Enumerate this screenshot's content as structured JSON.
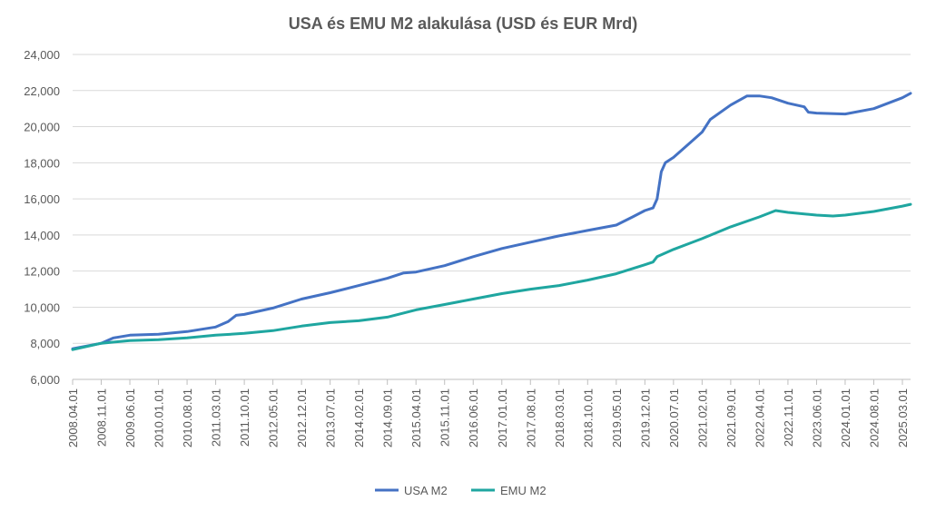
{
  "chart_data": {
    "type": "line",
    "title": "USA és EMU M2 alakulása (USD és EUR Mrd)",
    "xlabel": "",
    "ylabel": "",
    "ylim": [
      6000,
      24000
    ],
    "y_ticks": [
      "6,000",
      "8,000",
      "10,000",
      "12,000",
      "14,000",
      "16,000",
      "18,000",
      "20,000",
      "22,000",
      "24,000"
    ],
    "x_ticks": [
      "2008.04.01",
      "2008.11.01",
      "2009.06.01",
      "2010.01.01",
      "2010.08.01",
      "2011.03.01",
      "2011.10.01",
      "2012.05.01",
      "2012.12.01",
      "2013.07.01",
      "2014.02.01",
      "2014.09.01",
      "2015.04.01",
      "2015.11.01",
      "2016.06.01",
      "2017.01.01",
      "2017.08.01",
      "2018.03.01",
      "2018.10.01",
      "2019.05.01",
      "2019.12.01",
      "2020.07.01",
      "2021.02.01",
      "2021.09.01",
      "2022.04.01",
      "2022.11.01",
      "2023.06.01",
      "2024.01.01",
      "2024.08.01",
      "2025.03.01"
    ],
    "grid": true,
    "legend_position": "bottom",
    "series": [
      {
        "name": "USA M2",
        "color": "#4472C4",
        "points": [
          [
            "2008.04.01",
            7700
          ],
          [
            "2008.11.01",
            8000
          ],
          [
            "2009.02.01",
            8300
          ],
          [
            "2009.06.01",
            8450
          ],
          [
            "2010.01.01",
            8500
          ],
          [
            "2010.08.01",
            8650
          ],
          [
            "2011.03.01",
            8900
          ],
          [
            "2011.06.01",
            9200
          ],
          [
            "2011.08.01",
            9550
          ],
          [
            "2011.10.01",
            9600
          ],
          [
            "2012.05.01",
            9950
          ],
          [
            "2012.12.01",
            10450
          ],
          [
            "2013.07.01",
            10800
          ],
          [
            "2014.02.01",
            11200
          ],
          [
            "2014.09.01",
            11600
          ],
          [
            "2015.01.01",
            11900
          ],
          [
            "2015.04.01",
            11950
          ],
          [
            "2015.11.01",
            12300
          ],
          [
            "2016.06.01",
            12800
          ],
          [
            "2017.01.01",
            13250
          ],
          [
            "2017.08.01",
            13600
          ],
          [
            "2018.03.01",
            13950
          ],
          [
            "2018.10.01",
            14250
          ],
          [
            "2019.05.01",
            14550
          ],
          [
            "2019.09.01",
            15000
          ],
          [
            "2019.12.01",
            15350
          ],
          [
            "2020.02.01",
            15500
          ],
          [
            "2020.03.01",
            16000
          ],
          [
            "2020.04.01",
            17500
          ],
          [
            "2020.05.01",
            18000
          ],
          [
            "2020.07.01",
            18300
          ],
          [
            "2021.02.01",
            19700
          ],
          [
            "2021.04.01",
            20400
          ],
          [
            "2021.09.01",
            21200
          ],
          [
            "2022.01.01",
            21700
          ],
          [
            "2022.04.01",
            21700
          ],
          [
            "2022.07.01",
            21600
          ],
          [
            "2022.11.01",
            21300
          ],
          [
            "2023.03.01",
            21100
          ],
          [
            "2023.04.01",
            20800
          ],
          [
            "2023.06.01",
            20750
          ],
          [
            "2024.01.01",
            20700
          ],
          [
            "2024.08.01",
            21000
          ],
          [
            "2025.03.01",
            21600
          ],
          [
            "2025.05.01",
            21850
          ]
        ]
      },
      {
        "name": "EMU M2",
        "color": "#1FA6A0",
        "points": [
          [
            "2008.04.01",
            7650
          ],
          [
            "2008.11.01",
            8000
          ],
          [
            "2009.06.01",
            8150
          ],
          [
            "2010.01.01",
            8200
          ],
          [
            "2010.08.01",
            8300
          ],
          [
            "2011.03.01",
            8450
          ],
          [
            "2011.10.01",
            8550
          ],
          [
            "2012.05.01",
            8700
          ],
          [
            "2012.12.01",
            8950
          ],
          [
            "2013.07.01",
            9150
          ],
          [
            "2014.02.01",
            9250
          ],
          [
            "2014.09.01",
            9450
          ],
          [
            "2015.04.01",
            9850
          ],
          [
            "2015.11.01",
            10150
          ],
          [
            "2016.06.01",
            10450
          ],
          [
            "2017.01.01",
            10750
          ],
          [
            "2017.08.01",
            11000
          ],
          [
            "2018.03.01",
            11200
          ],
          [
            "2018.10.01",
            11500
          ],
          [
            "2019.05.01",
            11850
          ],
          [
            "2019.12.01",
            12350
          ],
          [
            "2020.02.01",
            12500
          ],
          [
            "2020.03.01",
            12800
          ],
          [
            "2020.07.01",
            13200
          ],
          [
            "2021.02.01",
            13800
          ],
          [
            "2021.09.01",
            14450
          ],
          [
            "2022.04.01",
            15000
          ],
          [
            "2022.08.01",
            15350
          ],
          [
            "2022.11.01",
            15250
          ],
          [
            "2023.06.01",
            15100
          ],
          [
            "2023.10.01",
            15050
          ],
          [
            "2024.01.01",
            15100
          ],
          [
            "2024.08.01",
            15300
          ],
          [
            "2025.03.01",
            15600
          ],
          [
            "2025.05.01",
            15700
          ]
        ]
      }
    ]
  }
}
